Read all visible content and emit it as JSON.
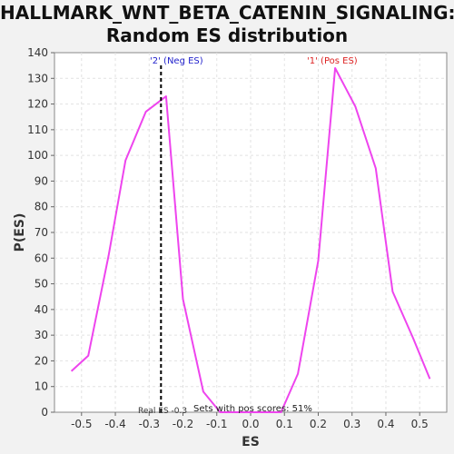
{
  "chart_data": {
    "type": "line",
    "title_line1": "HALLMARK_WNT_BETA_CATENIN_SIGNALING:",
    "title_line2": "Random ES distribution",
    "xlabel": "ES",
    "ylabel": "P(ES)",
    "xlim": [
      -0.58,
      0.58
    ],
    "ylim": [
      0,
      140
    ],
    "x_ticks": [
      "-0.5",
      "-0.4",
      "-0.3",
      "-0.2",
      "-0.1",
      "0.0",
      "0.1",
      "0.2",
      "0.3",
      "0.4",
      "0.5"
    ],
    "y_ticks": [
      "0",
      "10",
      "20",
      "30",
      "40",
      "50",
      "60",
      "70",
      "80",
      "90",
      "100",
      "110",
      "120",
      "130",
      "140"
    ],
    "grid": true,
    "series": [
      {
        "color": "#ee44ee",
        "x": [
          -0.53,
          -0.48,
          -0.42,
          -0.37,
          -0.31,
          -0.25,
          -0.2,
          -0.14,
          -0.09,
          -0.03,
          0.03,
          0.09,
          0.14,
          0.2,
          0.25,
          0.31,
          0.37,
          0.42,
          0.48,
          0.53
        ],
        "y": [
          16,
          22,
          61,
          98,
          117,
          123,
          44,
          8,
          0,
          0,
          0,
          0,
          15,
          59,
          134,
          119,
          95,
          47,
          29,
          13
        ]
      }
    ],
    "real_es": {
      "x": -0.265,
      "label": "Real ES -0.3"
    },
    "annotations": {
      "neg_label": "'2' (Neg ES)",
      "neg_color": "#2222cc",
      "pos_label": "'1' (Pos ES)",
      "pos_color": "#dd2222",
      "pos_scores_text": "Sets with pos scores: 51%"
    }
  }
}
